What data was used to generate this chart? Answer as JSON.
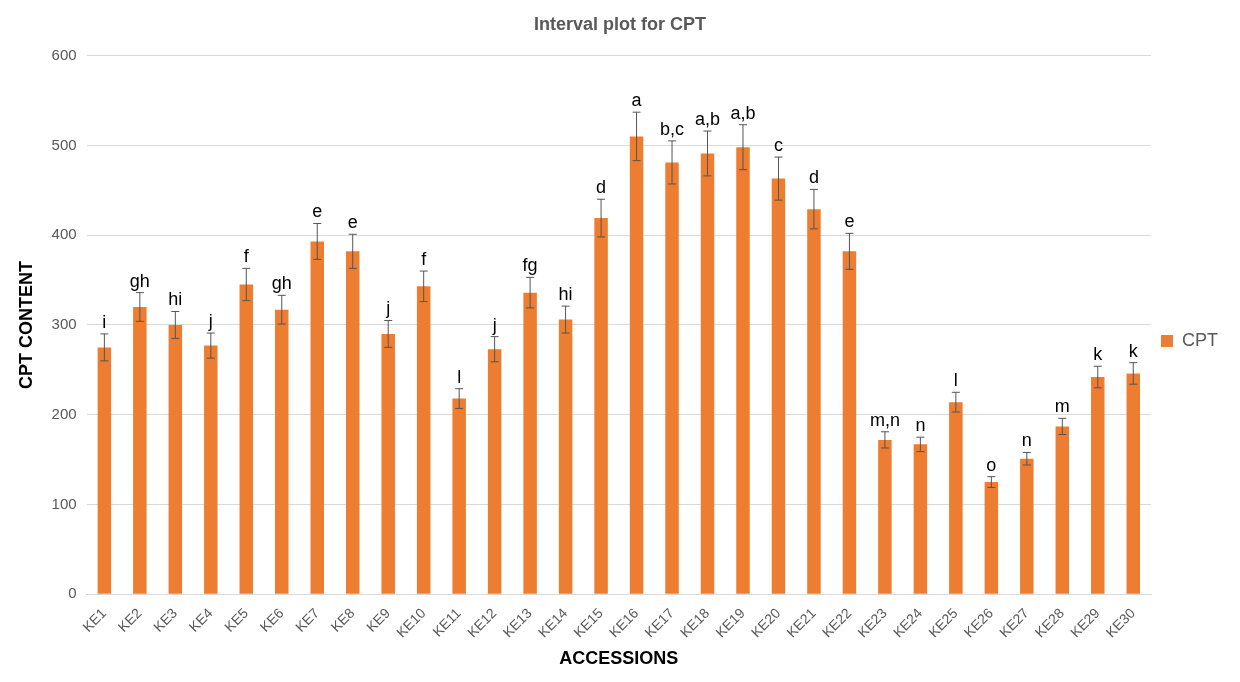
{
  "chart_data": {
    "type": "bar",
    "title": "Interval plot for CPT",
    "xlabel": "ACCESSIONS",
    "ylabel": "CPT CONTENT",
    "categories": [
      "KE1",
      "KE2",
      "KE3",
      "KE4",
      "KE5",
      "KE6",
      "KE7",
      "KE8",
      "KE9",
      "KE10",
      "KE11",
      "KE12",
      "KE13",
      "KE14",
      "KE15",
      "KE16",
      "KE17",
      "KE18",
      "KE19",
      "KE20",
      "KE21",
      "KE22",
      "KE23",
      "KE24",
      "KE25",
      "KE26",
      "KE27",
      "KE28",
      "KE29",
      "KE30"
    ],
    "series": [
      {
        "name": "CPT",
        "color": "#ed7d31",
        "values": [
          275,
          320,
          300,
          277,
          345,
          317,
          393,
          382,
          290,
          343,
          218,
          273,
          336,
          306,
          419,
          510,
          481,
          491,
          498,
          463,
          429,
          382,
          172,
          167,
          214,
          125,
          151,
          187,
          242,
          246
        ],
        "errors": [
          15,
          16,
          15,
          14,
          18,
          16,
          20,
          19,
          15,
          17,
          11,
          14,
          17,
          15,
          21,
          27,
          24,
          25,
          25,
          24,
          22,
          20,
          9,
          8,
          11,
          6,
          7,
          9,
          12,
          12
        ]
      }
    ],
    "ylim": [
      0,
      600
    ],
    "yticks": [
      0,
      100,
      200,
      300,
      400,
      500,
      600
    ],
    "grid": "y",
    "legend": "right",
    "annotations": [
      {
        "text": "i",
        "x": "KE1",
        "y": 290
      },
      {
        "text": "gh",
        "x": "KE2",
        "y": 336
      },
      {
        "text": "hi",
        "x": "KE3",
        "y": 315
      },
      {
        "text": "j",
        "x": "KE4",
        "y": 291
      },
      {
        "text": "f",
        "x": "KE5",
        "y": 363
      },
      {
        "text": "gh",
        "x": "KE6",
        "y": 333
      },
      {
        "text": "e",
        "x": "KE7",
        "y": 413
      },
      {
        "text": "e",
        "x": "KE8",
        "y": 401
      },
      {
        "text": "j",
        "x": "KE9",
        "y": 305
      },
      {
        "text": "f",
        "x": "KE10",
        "y": 360
      },
      {
        "text": "l",
        "x": "KE11",
        "y": 229
      },
      {
        "text": "j",
        "x": "KE12",
        "y": 287
      },
      {
        "text": "fg",
        "x": "KE13",
        "y": 353
      },
      {
        "text": "hi",
        "x": "KE14",
        "y": 321
      },
      {
        "text": "d",
        "x": "KE15",
        "y": 440
      },
      {
        "text": "a",
        "x": "KE16",
        "y": 537
      },
      {
        "text": "b,c",
        "x": "KE17",
        "y": 505
      },
      {
        "text": "a,b",
        "x": "KE18",
        "y": 516
      },
      {
        "text": "a,b",
        "x": "KE19",
        "y": 523
      },
      {
        "text": "c",
        "x": "KE20",
        "y": 487
      },
      {
        "text": "d",
        "x": "KE21",
        "y": 451
      },
      {
        "text": "e",
        "x": "KE22",
        "y": 402
      },
      {
        "text": "m,n",
        "x": "KE23",
        "y": 181
      },
      {
        "text": "n",
        "x": "KE24",
        "y": 175
      },
      {
        "text": "l",
        "x": "KE25",
        "y": 225
      },
      {
        "text": "o",
        "x": "KE26",
        "y": 131
      },
      {
        "text": "n",
        "x": "KE27",
        "y": 158
      },
      {
        "text": "m",
        "x": "KE28",
        "y": 196
      },
      {
        "text": "k",
        "x": "KE29",
        "y": 254
      },
      {
        "text": "k",
        "x": "KE30",
        "y": 258
      }
    ]
  }
}
